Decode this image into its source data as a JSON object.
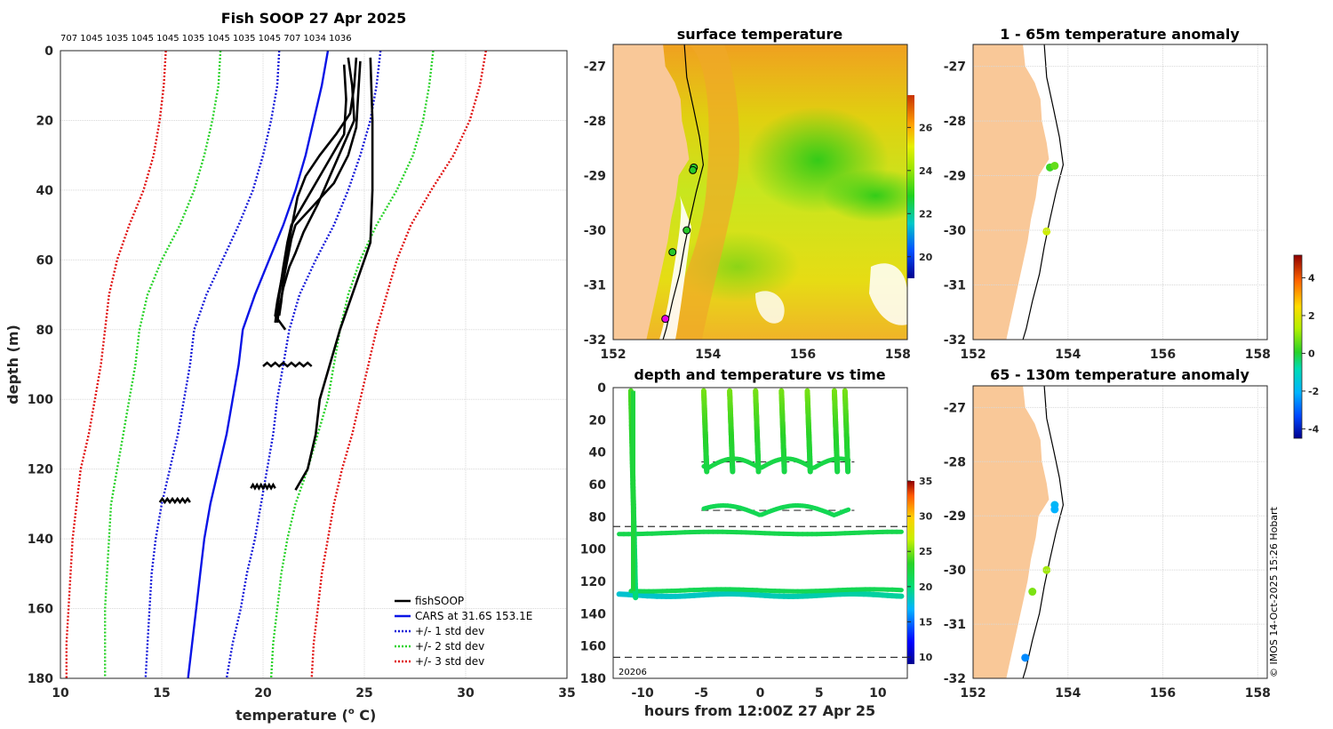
{
  "credit": "© IMOS 14-Oct-2025 15:26 Hobart",
  "colors": {
    "land": "#f9c898",
    "fish": "#000000",
    "cars": "#0a14e6",
    "std1": "#1418d8",
    "std2": "#28d228",
    "std3": "#e01010"
  },
  "chart_data": [
    {
      "type": "line",
      "title": "Fish SOOP 27 Apr 2025",
      "top_labels": "707 1045 1035 1045 1045 1035 1045 1035 1045 707 1034 1036",
      "xlabel": "temperature (",
      "xlabel_sup": "o",
      "xlabel_end": " C)",
      "ylabel": "depth (m)",
      "xlim": [
        10,
        35
      ],
      "ylim": [
        0,
        180
      ],
      "xticks": [
        "10",
        "15",
        "20",
        "25",
        "30",
        "35"
      ],
      "yticks": [
        "0",
        "20",
        "40",
        "60",
        "80",
        "100",
        "120",
        "140",
        "160",
        "180"
      ],
      "legend": [
        "fishSOOP",
        "CARS at 31.6S 153.1E",
        "+/- 1 std dev",
        "+/- 2 std dev",
        "+/- 3 std dev"
      ],
      "series": [
        {
          "name": "CARS",
          "depth": [
            0,
            10,
            20,
            30,
            40,
            50,
            60,
            70,
            80,
            90,
            100,
            110,
            120,
            130,
            140,
            150,
            160,
            170,
            180
          ],
          "values": [
            23.2,
            22.9,
            22.5,
            22.1,
            21.6,
            21.0,
            20.3,
            19.6,
            19.0,
            18.8,
            18.5,
            18.2,
            17.8,
            17.4,
            17.1,
            16.9,
            16.7,
            16.5,
            16.3
          ]
        },
        {
          "name": "minus1",
          "depth": [
            0,
            10,
            20,
            30,
            40,
            50,
            60,
            70,
            80,
            90,
            100,
            110,
            120,
            130,
            140,
            150,
            160,
            170,
            180
          ],
          "values": [
            20.8,
            20.7,
            20.4,
            20.0,
            19.5,
            18.8,
            18.0,
            17.2,
            16.6,
            16.4,
            16.1,
            15.8,
            15.4,
            15.0,
            14.7,
            14.5,
            14.4,
            14.3,
            14.2
          ]
        },
        {
          "name": "plus1",
          "depth": [
            0,
            10,
            20,
            30,
            40,
            50,
            60,
            70,
            80,
            90,
            100,
            110,
            120,
            130,
            140,
            150,
            160,
            170,
            180
          ],
          "values": [
            25.8,
            25.6,
            25.3,
            24.8,
            24.2,
            23.5,
            22.6,
            21.8,
            21.3,
            21.0,
            20.7,
            20.5,
            20.2,
            19.9,
            19.6,
            19.2,
            18.9,
            18.5,
            18.2
          ]
        },
        {
          "name": "minus2",
          "depth": [
            0,
            10,
            20,
            30,
            40,
            50,
            60,
            70,
            80,
            90,
            100,
            110,
            120,
            130,
            140,
            150,
            160,
            170,
            180
          ],
          "values": [
            17.9,
            17.8,
            17.5,
            17.1,
            16.6,
            15.9,
            15.0,
            14.3,
            13.9,
            13.7,
            13.4,
            13.1,
            12.8,
            12.5,
            12.4,
            12.3,
            12.2,
            12.2,
            12.2
          ]
        },
        {
          "name": "plus2",
          "depth": [
            0,
            10,
            20,
            30,
            40,
            50,
            60,
            70,
            80,
            90,
            100,
            110,
            120,
            130,
            140,
            150,
            160,
            170,
            180
          ],
          "values": [
            28.4,
            28.2,
            27.9,
            27.4,
            26.6,
            25.6,
            24.8,
            24.2,
            23.8,
            23.5,
            23.2,
            22.7,
            22.2,
            21.6,
            21.2,
            20.9,
            20.7,
            20.5,
            20.4
          ]
        },
        {
          "name": "minus3",
          "depth": [
            0,
            10,
            20,
            30,
            40,
            50,
            60,
            70,
            80,
            90,
            100,
            110,
            120,
            130,
            140,
            150,
            160,
            170,
            180
          ],
          "values": [
            15.2,
            15.1,
            14.9,
            14.6,
            14.1,
            13.4,
            12.8,
            12.4,
            12.2,
            12.0,
            11.7,
            11.4,
            11.0,
            10.8,
            10.6,
            10.5,
            10.4,
            10.3,
            10.3
          ]
        },
        {
          "name": "plus3",
          "depth": [
            0,
            10,
            20,
            30,
            40,
            50,
            60,
            70,
            80,
            90,
            100,
            110,
            120,
            130,
            140,
            150,
            160,
            170,
            180
          ],
          "values": [
            31.0,
            30.7,
            30.2,
            29.4,
            28.3,
            27.3,
            26.6,
            26.1,
            25.6,
            25.2,
            24.8,
            24.4,
            23.9,
            23.5,
            23.2,
            22.9,
            22.7,
            22.5,
            22.4
          ]
        },
        {
          "name": "fish_a",
          "depth": [
            2,
            10,
            18,
            24,
            30,
            36,
            42,
            48,
            54,
            60,
            66,
            72,
            76,
            80
          ],
          "values": [
            24.6,
            24.5,
            24.3,
            23.6,
            22.8,
            22.1,
            21.7,
            21.5,
            21.3,
            21.1,
            20.9,
            20.7,
            20.6,
            21.1
          ]
        },
        {
          "name": "fish_b",
          "depth": [
            2,
            10,
            20,
            28,
            36,
            44,
            52,
            58,
            62,
            68,
            74,
            78
          ],
          "values": [
            24.2,
            24.4,
            24.5,
            23.9,
            23.3,
            22.7,
            22.0,
            21.6,
            21.3,
            21.0,
            20.8,
            20.7
          ]
        },
        {
          "name": "fish_c",
          "depth": [
            3,
            12,
            22,
            30,
            38,
            45,
            50,
            54,
            60,
            66,
            72,
            76
          ],
          "values": [
            24.8,
            24.7,
            24.6,
            24.2,
            23.5,
            22.4,
            21.6,
            21.4,
            21.2,
            21.0,
            20.9,
            20.8
          ]
        },
        {
          "name": "fish_d",
          "depth": [
            4,
            14,
            24,
            34,
            42,
            50,
            55,
            62,
            70,
            78
          ],
          "values": [
            24.0,
            24.1,
            24.0,
            23.0,
            22.2,
            21.4,
            21.2,
            21.0,
            20.8,
            20.6
          ]
        },
        {
          "name": "fish_deep",
          "depth": [
            2,
            20,
            40,
            55,
            60,
            70,
            80,
            90,
            100,
            110,
            120,
            126
          ],
          "values": [
            25.3,
            25.4,
            25.4,
            25.3,
            25.0,
            24.4,
            23.8,
            23.3,
            22.8,
            22.6,
            22.2,
            21.6
          ]
        }
      ],
      "blobs": [
        {
          "t": [
            20.0,
            22.4
          ],
          "depth": 90
        },
        {
          "t": [
            19.4,
            20.6
          ],
          "depth": 125
        },
        {
          "t": [
            14.9,
            16.4
          ],
          "depth": 129
        }
      ]
    },
    {
      "type": "heatmap",
      "title": "surface temperature",
      "xlim": [
        152,
        158.2
      ],
      "ylim": [
        -32,
        -26.6
      ],
      "xticks": [
        "152",
        "154",
        "156",
        "158"
      ],
      "yticks": [
        "-27",
        "-28",
        "-29",
        "-30",
        "-31",
        "-32"
      ],
      "colorbar_ticks": [
        "20",
        "22",
        "24",
        "26"
      ],
      "clim": [
        19,
        27.5
      ],
      "fish_points": [
        [
          153.7,
          -28.85
        ],
        [
          153.68,
          -28.9
        ],
        [
          153.55,
          -30.0
        ],
        [
          153.25,
          -30.4
        ],
        [
          153.1,
          -31.62
        ]
      ]
    },
    {
      "type": "scatter",
      "title": "depth and temperature vs time",
      "xlabel": "hours from 12:00Z 27 Apr 25",
      "xlim": [
        -12.5,
        12.5
      ],
      "ylim": [
        0,
        180
      ],
      "xticks": [
        "-10",
        "-5",
        "0",
        "5",
        "10"
      ],
      "yticks": [
        "0",
        "20",
        "40",
        "60",
        "80",
        "100",
        "120",
        "140",
        "160",
        "180"
      ],
      "colorbar_ticks": [
        "10",
        "15",
        "20",
        "25",
        "30",
        "35"
      ],
      "clim": [
        9,
        35
      ],
      "dashed_depths": [
        86,
        167
      ],
      "short_dashed_depths": [
        [
          -5,
          8,
          46
        ],
        [
          -5,
          8,
          76
        ]
      ],
      "corner_label": "20206"
    },
    {
      "type": "scatter",
      "title": "1 - 65m temperature anomaly",
      "xlim": [
        152,
        158.2
      ],
      "ylim": [
        -32,
        -26.6
      ],
      "xticks": [
        "152",
        "154",
        "156",
        "158"
      ],
      "yticks": [
        "-27",
        "-28",
        "-29",
        "-30",
        "-31",
        "-32"
      ],
      "points": [
        [
          153.62,
          -28.85,
          1.0
        ],
        [
          153.72,
          -28.82,
          1.3
        ],
        [
          153.55,
          -30.02,
          2.2
        ]
      ]
    },
    {
      "type": "scatter",
      "title": "65 - 130m temperature anomaly",
      "xlim": [
        152,
        158.2
      ],
      "ylim": [
        -32,
        -26.6
      ],
      "xticks": [
        "152",
        "154",
        "156",
        "158"
      ],
      "yticks": [
        "-27",
        "-28",
        "-29",
        "-30",
        "-31",
        "-32"
      ],
      "points": [
        [
          153.72,
          -28.8,
          -1.5
        ],
        [
          153.72,
          -28.88,
          -1.6
        ],
        [
          153.55,
          -30.0,
          1.8
        ],
        [
          153.25,
          -30.4,
          1.5
        ],
        [
          153.1,
          -31.62,
          -2.0
        ]
      ]
    },
    {
      "type": "colorbar",
      "ticks": [
        "4",
        "2",
        "0",
        "-2",
        "-4"
      ],
      "clim": [
        -4.5,
        5.2
      ]
    }
  ]
}
